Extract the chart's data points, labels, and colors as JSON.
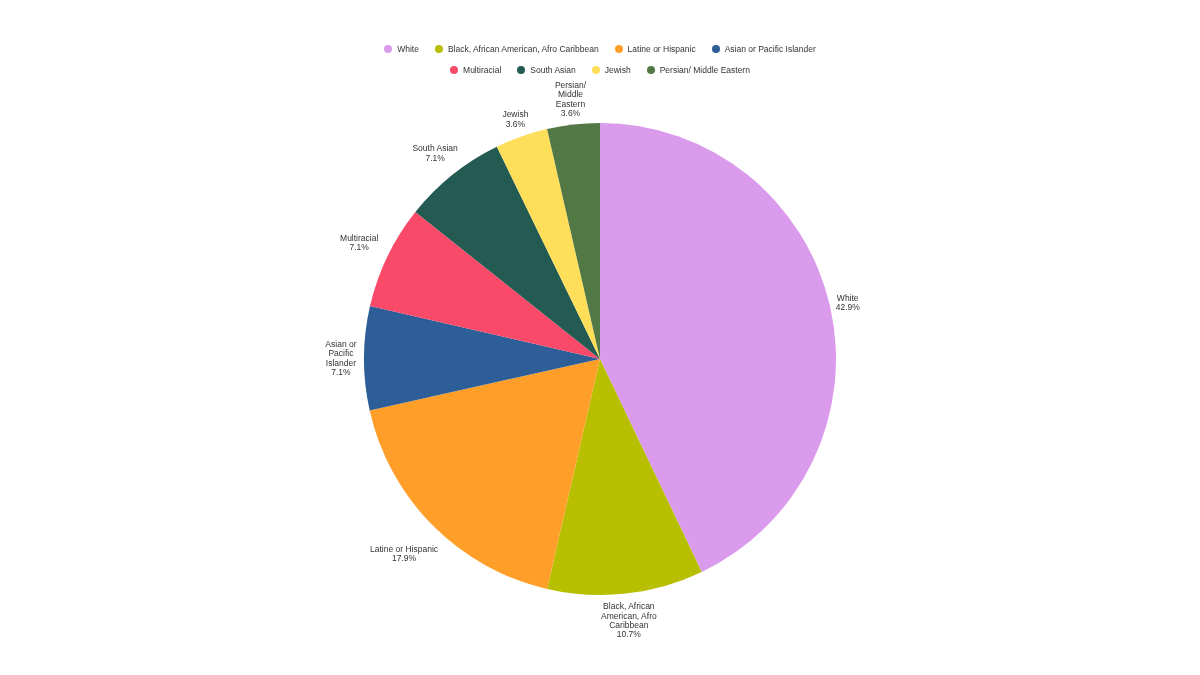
{
  "chart_data": {
    "type": "pie",
    "categories": [
      "White",
      "Black, African American, Afro Caribbean",
      "Latine or Hispanic",
      "Asian or Pacific Islander",
      "Multiracial",
      "South Asian",
      "Jewish",
      "Persian/ Middle Eastern"
    ],
    "values": [
      42.9,
      10.7,
      17.9,
      7.1,
      7.1,
      7.1,
      3.6,
      3.6
    ],
    "value_labels": [
      "42.9%",
      "10.7%",
      "17.9%",
      "7.1%",
      "7.1%",
      "7.1%",
      "3.6%",
      "3.6%"
    ],
    "colors": [
      "#da9bec",
      "#b7bf00",
      "#ff9f2a",
      "#2e5e98",
      "#f94a6a",
      "#235a52",
      "#ffde5a",
      "#517845"
    ],
    "legend": "top"
  }
}
